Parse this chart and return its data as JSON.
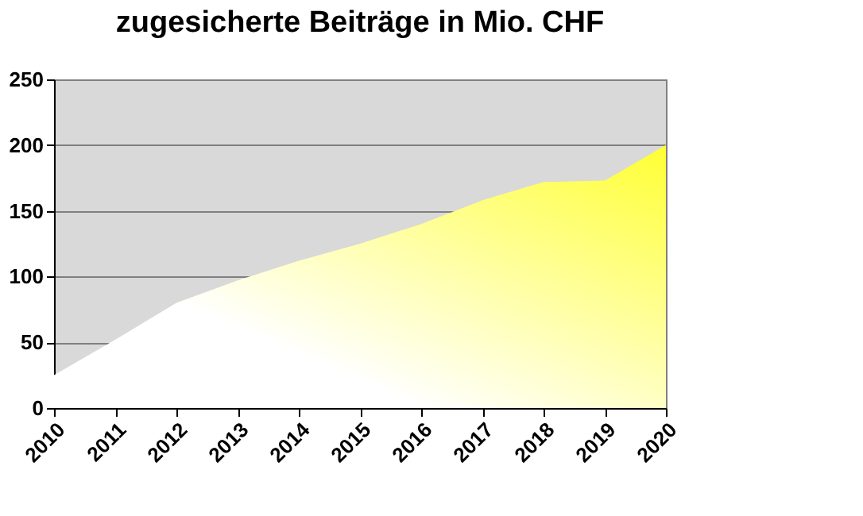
{
  "chart_data": {
    "type": "area",
    "title": "zugesicherte Beiträge in Mio. CHF",
    "categories": [
      "2010",
      "2011",
      "2012",
      "2013",
      "2014",
      "2015",
      "2016",
      "2017",
      "2018",
      "2019",
      "2020"
    ],
    "series": [
      {
        "color": "#ffff33",
        "values": [
          25,
          52,
          80,
          97,
          112,
          125,
          140,
          158,
          172,
          173,
          200
        ]
      }
    ],
    "ylim": [
      0,
      250
    ],
    "yticks": [
      0,
      50,
      100,
      150,
      200,
      250
    ],
    "grid": "y"
  }
}
